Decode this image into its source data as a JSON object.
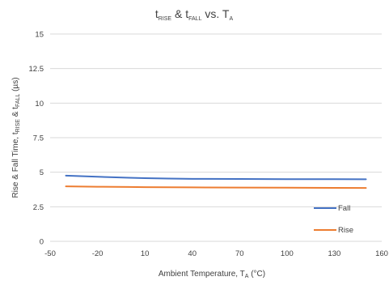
{
  "chart_data": {
    "type": "line",
    "title": {
      "t1": "t",
      "sub1": "RISE",
      "amp": " & t",
      "sub2": "FALL",
      "vs": " vs. T",
      "sub3": "A"
    },
    "xlabel": {
      "main": "Ambient Temperature, T",
      "sub": "A",
      "unit": " (°C)"
    },
    "ylabel": {
      "p1": "Rise & Fall Time, t",
      "s1": "RISE",
      "p2": " & t",
      "s2": "FALL",
      "p3": " (µs)"
    },
    "xlim": [
      -50,
      160
    ],
    "ylim": [
      0,
      15
    ],
    "x_ticks": [
      -50,
      -20,
      10,
      40,
      70,
      100,
      130,
      160
    ],
    "y_ticks": [
      0,
      2.5,
      5,
      7.5,
      10,
      12.5,
      15
    ],
    "y_tick_labels": [
      "0",
      "2.5",
      "5",
      "7.5",
      "10",
      "12.5",
      "15"
    ],
    "grid": "horizontal",
    "legend_position": "lower-right",
    "series": [
      {
        "name": "Fall",
        "color": "#4472c4",
        "x": [
          -40,
          -20,
          0,
          10,
          25,
          40,
          70,
          100,
          130,
          150
        ],
        "y": [
          4.75,
          4.67,
          4.6,
          4.57,
          4.54,
          4.52,
          4.51,
          4.5,
          4.5,
          4.49
        ]
      },
      {
        "name": "Rise",
        "color": "#ed7d31",
        "x": [
          -40,
          -20,
          0,
          10,
          25,
          40,
          70,
          100,
          130,
          150
        ],
        "y": [
          3.98,
          3.95,
          3.93,
          3.92,
          3.91,
          3.9,
          3.89,
          3.88,
          3.87,
          3.86
        ]
      }
    ]
  },
  "colors": {
    "grid": "#d9d9d9",
    "text": "#404040"
  }
}
